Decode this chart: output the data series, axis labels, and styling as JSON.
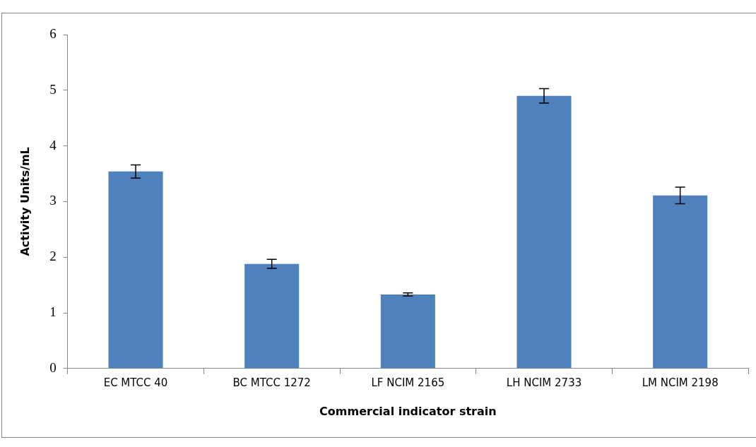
{
  "chart_data": {
    "type": "bar",
    "xlabel": "Commercial indicator strain",
    "ylabel": "Activity Units/mL",
    "categories": [
      "EC MTCC 40",
      "BC MTCC 1272",
      "LF NCIM 2165",
      "LH NCIM 2733",
      "LM NCIM 2198"
    ],
    "values": [
      3.54,
      1.88,
      1.33,
      4.9,
      3.11
    ],
    "errors": [
      0.12,
      0.08,
      0.03,
      0.13,
      0.15
    ],
    "color": "#4f81bd",
    "ylim": [
      0,
      6
    ],
    "yticks": [
      0,
      1,
      2,
      3,
      4,
      5,
      6
    ],
    "grid": false,
    "legend": false
  }
}
